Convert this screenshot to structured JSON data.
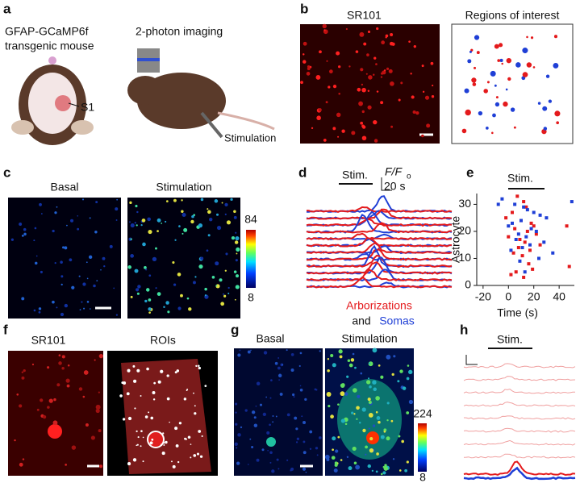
{
  "panels": {
    "a": {
      "label": "a",
      "line1": "GFAP-GCaMP6f",
      "line2": "transgenic mouse",
      "imaging": "2-photon imaging",
      "area": "S1",
      "stim": "Stimulation"
    },
    "b": {
      "label": "b",
      "left": "SR101",
      "right": "Regions of interest"
    },
    "c": {
      "label": "c",
      "left": "Basal",
      "right": "Stimulation",
      "cmax": "84",
      "cmin": "8"
    },
    "d": {
      "label": "d",
      "stim": "Stim.",
      "scale_y": "F/F",
      "scale_y_sub": "o",
      "scale_x": "20 s",
      "legend_red": "Arborizations",
      "legend_and": "and",
      "legend_blue": "Somas"
    },
    "e": {
      "label": "e",
      "stim": "Stim."
    },
    "f": {
      "label": "f",
      "left": "SR101",
      "right": "ROIs"
    },
    "g": {
      "label": "g",
      "left": "Basal",
      "right": "Stimulation",
      "cmax": "224",
      "cmin": "8"
    },
    "h": {
      "label": "h",
      "stim": "Stim."
    }
  },
  "chart_data": {
    "type": "scatter",
    "xlabel": "Time (s)",
    "ylabel": "Astrocyte",
    "xlim": [
      -25,
      52
    ],
    "ylim": [
      0,
      34
    ],
    "xticks": [
      -20,
      0,
      20,
      40
    ],
    "yticks": [
      0,
      10,
      20,
      30
    ],
    "series": [
      {
        "color": "#e41a1c",
        "x": [
          7,
          12,
          14,
          3,
          -2,
          10,
          18,
          20,
          5,
          15,
          22,
          0,
          9,
          13,
          25,
          8,
          17,
          4,
          11,
          46,
          48,
          16,
          19,
          6,
          2,
          12
        ],
        "values": [
          33,
          31,
          29,
          27,
          25,
          24,
          23,
          22,
          21,
          20,
          19,
          18,
          17,
          16,
          15,
          14,
          13,
          12,
          11,
          22,
          7,
          8,
          6,
          5,
          4,
          3
        ]
      },
      {
        "color": "#1f3fd6",
        "x": [
          -5,
          -8,
          5,
          12,
          15,
          20,
          25,
          30,
          10,
          3,
          0,
          18,
          22,
          8,
          14,
          6,
          28,
          17,
          11,
          2,
          35,
          24,
          9,
          13,
          50
        ],
        "values": [
          32,
          30,
          30,
          29,
          28,
          27,
          26,
          25,
          24,
          23,
          22,
          21,
          20,
          19,
          18,
          17,
          16,
          15,
          14,
          13,
          12,
          10,
          9,
          5,
          31
        ]
      }
    ]
  }
}
